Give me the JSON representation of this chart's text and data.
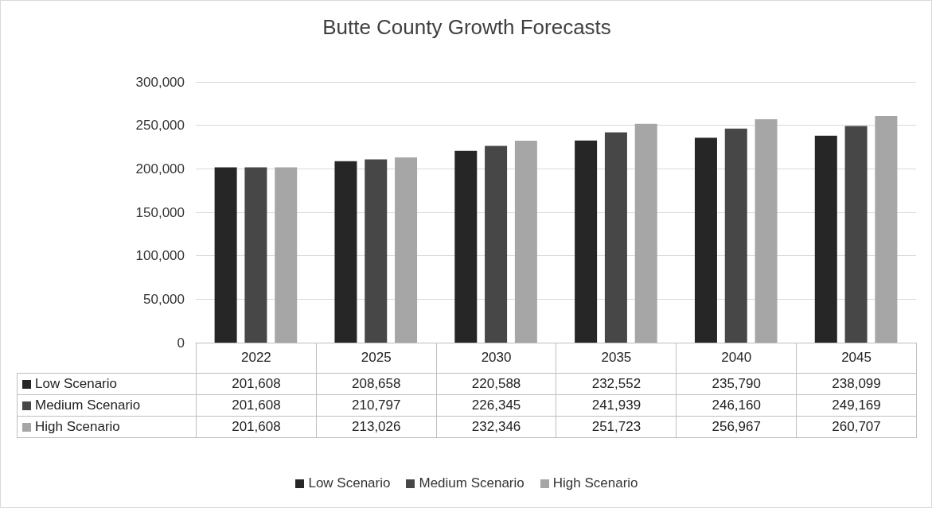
{
  "chart_data": {
    "type": "bar",
    "title": "Butte County Growth Forecasts",
    "categories": [
      "2022",
      "2025",
      "2030",
      "2035",
      "2040",
      "2045"
    ],
    "series": [
      {
        "name": "Low Scenario",
        "color": "#262626",
        "values": [
          201608,
          208658,
          220588,
          232552,
          235790,
          238099
        ],
        "value_labels": [
          "201,608",
          "208,658",
          "220,588",
          "232,552",
          "235,790",
          "238,099"
        ]
      },
      {
        "name": "Medium Scenario",
        "color": "#474747",
        "values": [
          201608,
          210797,
          226345,
          241939,
          246160,
          249169
        ],
        "value_labels": [
          "201,608",
          "210,797",
          "226,345",
          "241,939",
          "246,160",
          "249,169"
        ]
      },
      {
        "name": "High Scenario",
        "color": "#a6a6a6",
        "values": [
          201608,
          213026,
          232346,
          251723,
          256967,
          260707
        ],
        "value_labels": [
          "201,608",
          "213,026",
          "232,346",
          "251,723",
          "256,967",
          "260,707"
        ]
      }
    ],
    "ylim": [
      0,
      300000
    ],
    "yticks": [
      0,
      {
        "value": 50000,
        "label": "50,000"
      },
      {
        "value": 100000,
        "label": "100,000"
      },
      {
        "value": 150000,
        "label": "150,000"
      },
      {
        "value": 200000,
        "label": "200,000"
      },
      {
        "value": 250000,
        "label": "250,000"
      },
      {
        "value": 300000,
        "label": "300,000"
      }
    ],
    "grid": "y",
    "legend": "bottom"
  }
}
